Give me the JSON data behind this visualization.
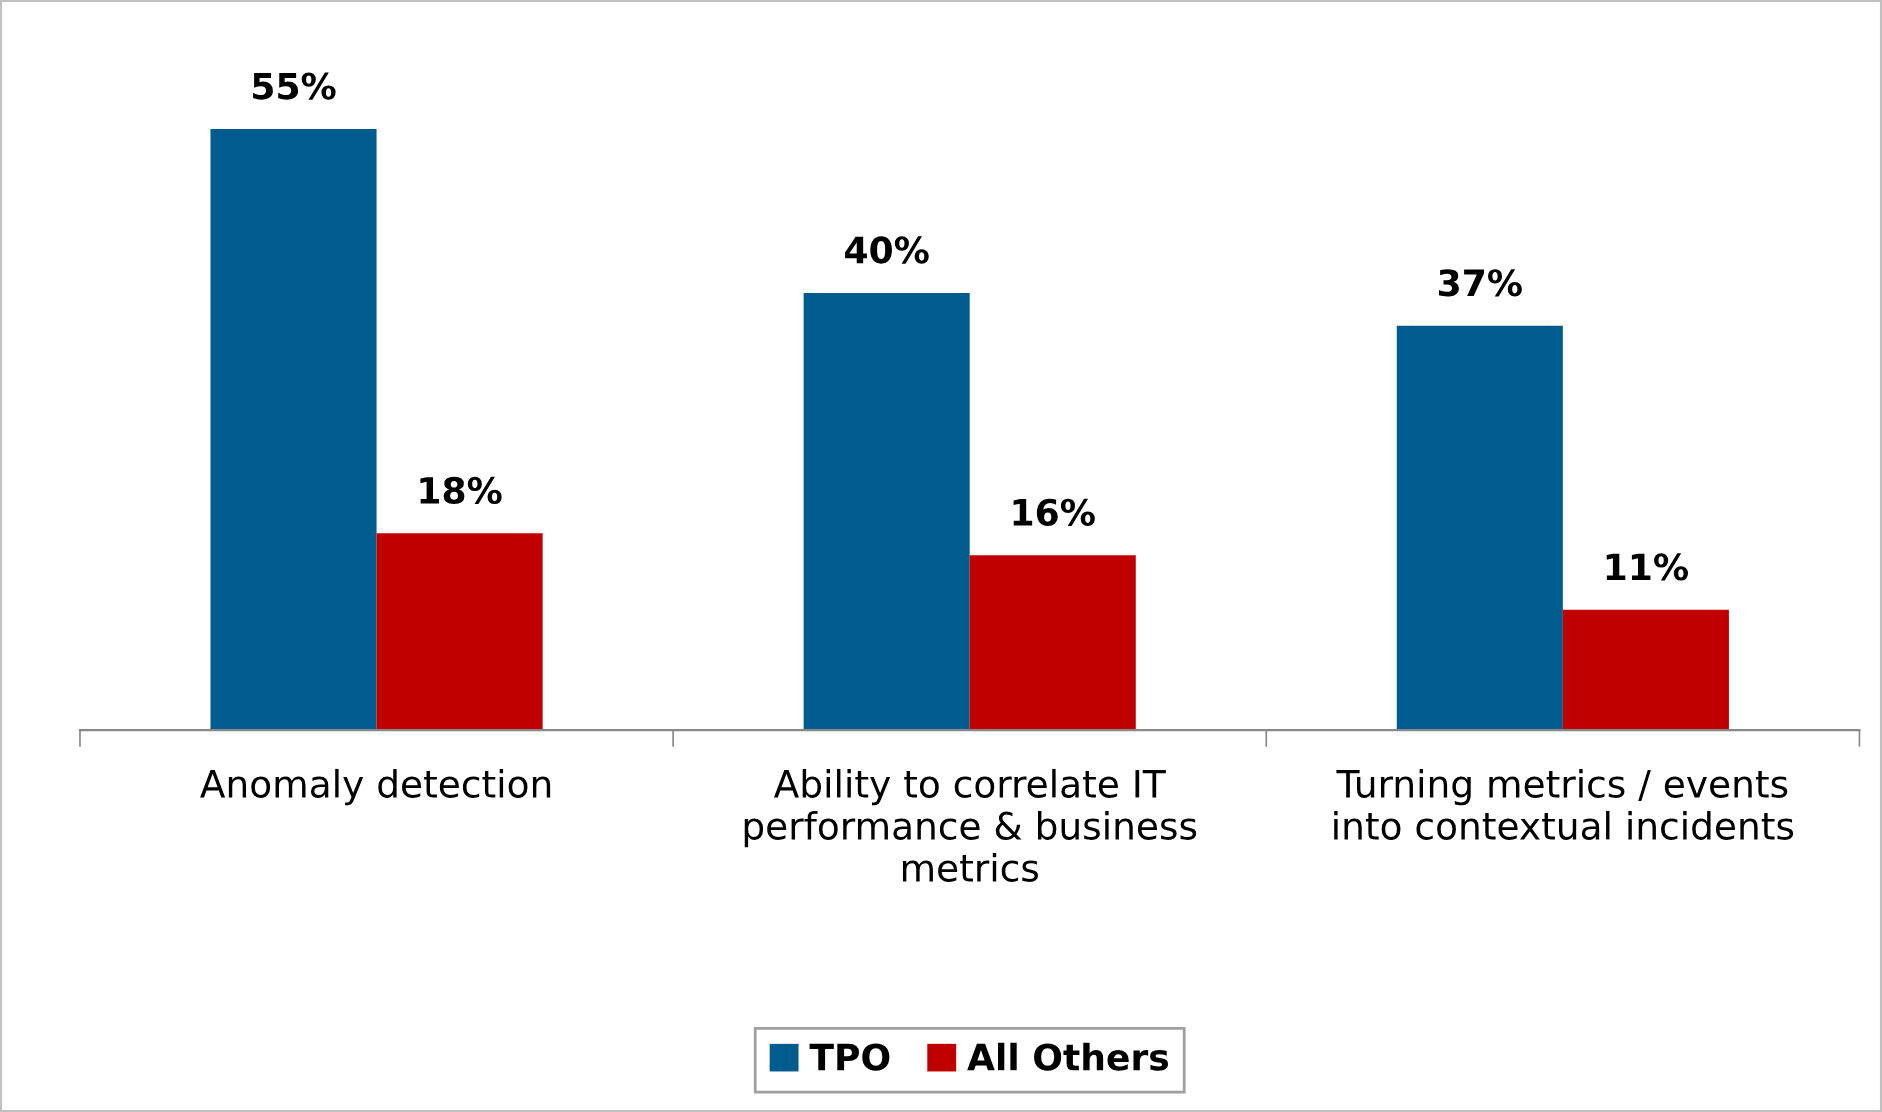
{
  "chart_data": {
    "type": "bar",
    "categories": [
      "Anomaly detection",
      "Ability to correlate IT\nperformance & business\nmetrics",
      "Turning metrics / events\ninto contextual incidents"
    ],
    "series": [
      {
        "name": "TPO",
        "color": "#005b8f",
        "values": [
          55,
          40,
          37
        ],
        "value_labels": [
          "55%",
          "40%",
          "37%"
        ]
      },
      {
        "name": "All Others",
        "color": "#c00000",
        "values": [
          18,
          16,
          11
        ],
        "value_labels": [
          "18%",
          "16%",
          "11%"
        ]
      }
    ],
    "legend": "bottom",
    "grid": false
  }
}
